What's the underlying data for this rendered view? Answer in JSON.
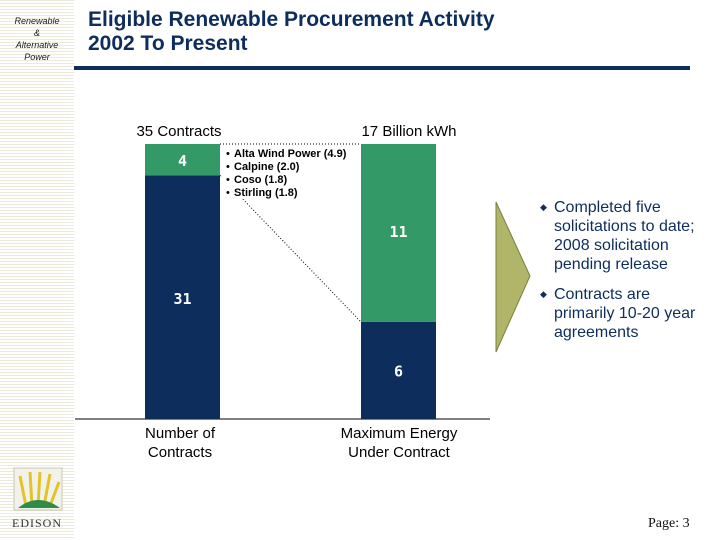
{
  "sidebar": {
    "section_label": [
      "Renewable",
      "&",
      "Alternative",
      "Power"
    ]
  },
  "header": {
    "title_line1": "Eligible Renewable Procurement Activity",
    "title_line2": "2002 To Present"
  },
  "chart_data": {
    "type": "bar",
    "stacked": true,
    "colors": {
      "dark": "#0d2d5c",
      "green": "#339966",
      "bar_label": "#ffffff"
    },
    "bars": [
      {
        "top_label": "35 Contracts",
        "category": "Number of Contracts",
        "category_lines": [
          "Number of",
          "Contracts"
        ],
        "total": 35,
        "segments": [
          {
            "value": 31,
            "label": "31",
            "color": "dark"
          },
          {
            "value": 4,
            "label": "4",
            "color": "green"
          }
        ]
      },
      {
        "top_label": "17 Billion kWh",
        "category": "Maximum Energy Under Contract",
        "category_lines": [
          "Maximum Energy",
          "Under Contract"
        ],
        "total": 17,
        "segments": [
          {
            "value": 6,
            "label": "6",
            "color": "dark"
          },
          {
            "value": 11,
            "label": "11",
            "color": "green"
          }
        ]
      }
    ],
    "annotation_items": [
      "Alta Wind Power (4.9)",
      "Calpine (2.0)",
      "Coso (1.8)",
      "Stirling (1.8)"
    ]
  },
  "notes": [
    "Completed five solicitations to date; 2008 solicitation pending release",
    "Contracts are primarily 10-20 year agreements"
  ],
  "footer": {
    "logo_text": "EDISON",
    "page_number": "Page: 3"
  }
}
